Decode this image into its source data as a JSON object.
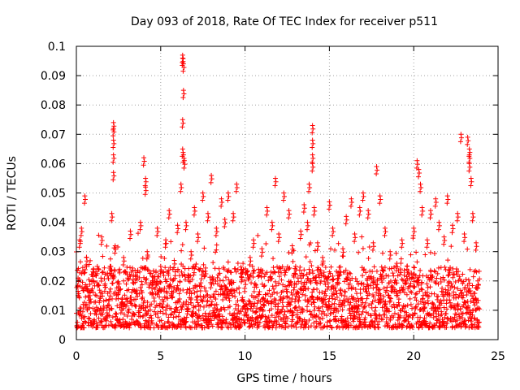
{
  "chart_data": {
    "type": "scatter",
    "title": "Day 093 of 2018, Rate Of TEC Index for receiver p511",
    "xlabel": "GPS time / hours",
    "ylabel": "ROTI / TECUs",
    "xlim": [
      0,
      25
    ],
    "ylim": [
      0,
      0.1
    ],
    "xticks": [
      0,
      5,
      10,
      15,
      20,
      25
    ],
    "xtick_labels": [
      "0",
      "5",
      "10",
      "15",
      "20",
      "25"
    ],
    "yticks": [
      0,
      0.01,
      0.02,
      0.03,
      0.04,
      0.05,
      0.06,
      0.07,
      0.08,
      0.09,
      0.1
    ],
    "ytick_labels": [
      "0",
      "0.01",
      "0.02",
      "0.03",
      "0.04",
      "0.05",
      "0.06",
      "0.07",
      "0.08",
      "0.09",
      "0.1"
    ],
    "grid": true,
    "marker": "plus",
    "color": "#ff0000",
    "series": [
      {
        "values": [
          [
            0.1,
            0.021
          ],
          [
            0.2,
            0.034
          ],
          [
            0.3,
            0.038
          ],
          [
            0.4,
            0.012
          ],
          [
            0.5,
            0.049
          ],
          [
            0.6,
            0.028
          ],
          [
            0.8,
            0.015
          ],
          [
            1.0,
            0.024
          ],
          [
            1.2,
            0.011
          ],
          [
            1.5,
            0.035
          ],
          [
            1.7,
            0.019
          ],
          [
            2.0,
            0.025
          ],
          [
            2.1,
            0.043
          ],
          [
            2.2,
            0.074
          ],
          [
            2.2,
            0.072
          ],
          [
            2.2,
            0.068
          ],
          [
            2.2,
            0.063
          ],
          [
            2.2,
            0.057
          ],
          [
            2.3,
            0.032
          ],
          [
            2.5,
            0.018
          ],
          [
            2.8,
            0.028
          ],
          [
            3.0,
            0.014
          ],
          [
            3.2,
            0.037
          ],
          [
            3.5,
            0.022
          ],
          [
            3.8,
            0.04
          ],
          [
            4.0,
            0.062
          ],
          [
            4.1,
            0.055
          ],
          [
            4.1,
            0.052
          ],
          [
            4.2,
            0.03
          ],
          [
            4.5,
            0.02
          ],
          [
            4.8,
            0.038
          ],
          [
            5.0,
            0.025
          ],
          [
            5.3,
            0.034
          ],
          [
            5.5,
            0.044
          ],
          [
            5.8,
            0.027
          ],
          [
            6.0,
            0.039
          ],
          [
            6.2,
            0.053
          ],
          [
            6.3,
            0.097
          ],
          [
            6.3,
            0.096
          ],
          [
            6.35,
            0.094
          ],
          [
            6.35,
            0.085
          ],
          [
            6.3,
            0.075
          ],
          [
            6.3,
            0.065
          ],
          [
            6.35,
            0.063
          ],
          [
            6.4,
            0.061
          ],
          [
            6.5,
            0.04
          ],
          [
            6.8,
            0.03
          ],
          [
            7.0,
            0.045
          ],
          [
            7.2,
            0.036
          ],
          [
            7.5,
            0.05
          ],
          [
            7.8,
            0.043
          ],
          [
            8.0,
            0.056
          ],
          [
            8.3,
            0.038
          ],
          [
            8.6,
            0.048
          ],
          [
            8.8,
            0.041
          ],
          [
            9.0,
            0.05
          ],
          [
            9.3,
            0.043
          ],
          [
            9.5,
            0.053
          ],
          [
            9.8,
            0.024
          ],
          [
            10.0,
            0.02
          ],
          [
            10.3,
            0.028
          ],
          [
            10.5,
            0.034
          ],
          [
            10.8,
            0.024
          ],
          [
            11.0,
            0.031
          ],
          [
            11.3,
            0.045
          ],
          [
            11.6,
            0.04
          ],
          [
            11.8,
            0.055
          ],
          [
            12.0,
            0.036
          ],
          [
            12.3,
            0.05
          ],
          [
            12.6,
            0.044
          ],
          [
            12.8,
            0.032
          ],
          [
            13.0,
            0.025
          ],
          [
            13.3,
            0.037
          ],
          [
            13.5,
            0.046
          ],
          [
            13.7,
            0.04
          ],
          [
            13.8,
            0.053
          ],
          [
            14.0,
            0.073
          ],
          [
            14.0,
            0.068
          ],
          [
            14.0,
            0.063
          ],
          [
            14.0,
            0.06
          ],
          [
            14.1,
            0.045
          ],
          [
            14.3,
            0.033
          ],
          [
            14.6,
            0.028
          ],
          [
            15.0,
            0.047
          ],
          [
            15.2,
            0.038
          ],
          [
            15.5,
            0.022
          ],
          [
            15.8,
            0.031
          ],
          [
            16.0,
            0.042
          ],
          [
            16.3,
            0.048
          ],
          [
            16.5,
            0.036
          ],
          [
            16.8,
            0.045
          ],
          [
            17.0,
            0.05
          ],
          [
            17.3,
            0.044
          ],
          [
            17.6,
            0.033
          ],
          [
            17.8,
            0.059
          ],
          [
            18.0,
            0.049
          ],
          [
            18.3,
            0.038
          ],
          [
            18.6,
            0.03
          ],
          [
            19.0,
            0.026
          ],
          [
            19.3,
            0.034
          ],
          [
            19.6,
            0.024
          ],
          [
            20.0,
            0.038
          ],
          [
            20.2,
            0.061
          ],
          [
            20.3,
            0.058
          ],
          [
            20.4,
            0.053
          ],
          [
            20.5,
            0.045
          ],
          [
            20.8,
            0.034
          ],
          [
            21.0,
            0.044
          ],
          [
            21.3,
            0.048
          ],
          [
            21.5,
            0.04
          ],
          [
            21.8,
            0.035
          ],
          [
            22.0,
            0.049
          ],
          [
            22.3,
            0.039
          ],
          [
            22.6,
            0.043
          ],
          [
            22.8,
            0.07
          ],
          [
            23.0,
            0.036
          ],
          [
            23.2,
            0.069
          ],
          [
            23.3,
            0.065
          ],
          [
            23.3,
            0.063
          ],
          [
            23.3,
            0.06
          ],
          [
            23.4,
            0.055
          ],
          [
            23.5,
            0.043
          ],
          [
            23.7,
            0.033
          ],
          [
            23.8,
            0.02
          ]
        ]
      }
    ],
    "dense_band": {
      "x_range": [
        0.0,
        23.9
      ],
      "typical_y": [
        0.004,
        0.025
      ],
      "sample_step_hours": 0.02
    }
  }
}
